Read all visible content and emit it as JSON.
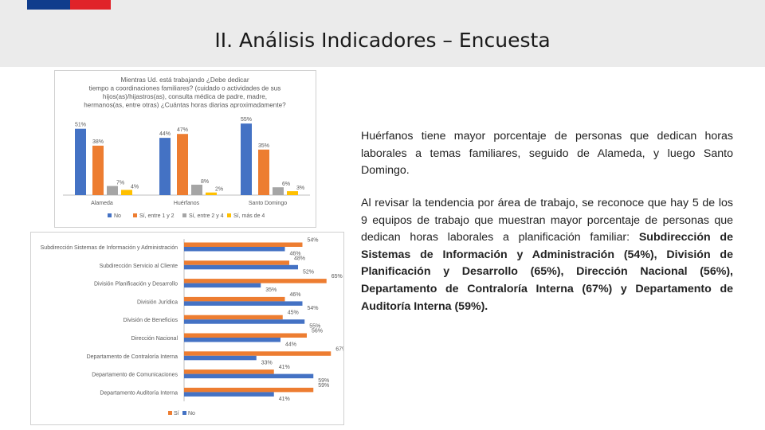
{
  "header": {
    "title": "II. Análisis Indicadores – Encuesta",
    "colors": {
      "blue": "#0f3c8c",
      "red": "#e02329",
      "band": "#ebebeb"
    }
  },
  "text": {
    "p1": "Huérfanos tiene mayor porcentaje de personas que dedican horas laborales a temas familiares, seguido de Alameda, y luego Santo Domingo.",
    "p2_intro": "Al revisar la tendencia por área de trabajo, se reconoce que hay 5 de los 9 equipos de trabajo que muestran mayor porcentaje de personas que dedican horas laborales a planificación familiar: ",
    "p2_bold": "Subdirección de Sistemas de Información y Administración (54%), División de Planificación y Desarrollo (65%), Dirección Nacional (56%), Departamento de Contraloría Interna (67%) y Departamento de Auditoría Interna (59%)."
  },
  "chart_data": [
    {
      "type": "bar",
      "title": "Mientras Ud. está trabajando ¿Debe dedicar tiempo a coordinaciones familiares? (cuidado o actividades de sus hijos(as)/hijastros(as), consulta médica de padre, madre, hermanos(as, entre otras) ¿Cuántas horas diarias aproximadamente?",
      "title_lines": [
        "Mientras Ud. está trabajando ¿Debe dedicar",
        "tiempo a coordinaciones familiares? (cuidado o actividades de sus",
        "hijos(as)/hijastros(as), consulta médica de padre, madre,",
        "hermanos(as, entre otras) ¿Cuántas horas diarias aproximadamente?"
      ],
      "categories": [
        "Alameda",
        "Huérfanos",
        "Santo Domingo"
      ],
      "series": [
        {
          "name": "No",
          "color": "#4472c4",
          "values": [
            51,
            44,
            55
          ],
          "labels": [
            "51%",
            "44%",
            "55%"
          ]
        },
        {
          "name": "Sí, entre 1 y 2",
          "color": "#ed7d31",
          "values": [
            38,
            47,
            35
          ],
          "labels": [
            "38%",
            "47%",
            "35%"
          ]
        },
        {
          "name": "Sí, entre 2 y 4",
          "color": "#a5a5a5",
          "values": [
            7,
            8,
            6
          ],
          "labels": [
            "7%",
            "8%",
            "6%"
          ]
        },
        {
          "name": "Sí, más de 4",
          "color": "#ffc000",
          "values": [
            4,
            2,
            3
          ],
          "labels": [
            "4%",
            "2%",
            "3%"
          ]
        }
      ],
      "ylim": [
        0,
        60
      ],
      "legend": "bottom",
      "grid": false
    },
    {
      "type": "bar",
      "orientation": "horizontal",
      "categories": [
        "Subdirección Sistemas de Información y Administración",
        "Subdirección Servicio al Cliente",
        "División Planificación y Desarrollo",
        "División Jurídica",
        "División de Beneficios",
        "Dirección Nacional",
        "Departamento de Contraloría Interna",
        "Departamento de Comunicaciones",
        "Departamento Auditoría Interna"
      ],
      "series": [
        {
          "name": "Sí",
          "color": "#ed7d31",
          "values": [
            54,
            48,
            65,
            46,
            45,
            56,
            67,
            41,
            59
          ],
          "labels": [
            "54%",
            "48%",
            "65%",
            "46%",
            "45%",
            "56%",
            "67%",
            "41%",
            "59%"
          ]
        },
        {
          "name": "No",
          "color": "#4472c4",
          "values": [
            46,
            52,
            35,
            54,
            55,
            44,
            33,
            59,
            41
          ],
          "labels": [
            "46%",
            "52%",
            "35%",
            "54%",
            "55%",
            "44%",
            "33%",
            "59%",
            "41%"
          ]
        }
      ],
      "xlim": [
        0,
        70
      ],
      "legend": "bottom",
      "grid": false
    }
  ]
}
